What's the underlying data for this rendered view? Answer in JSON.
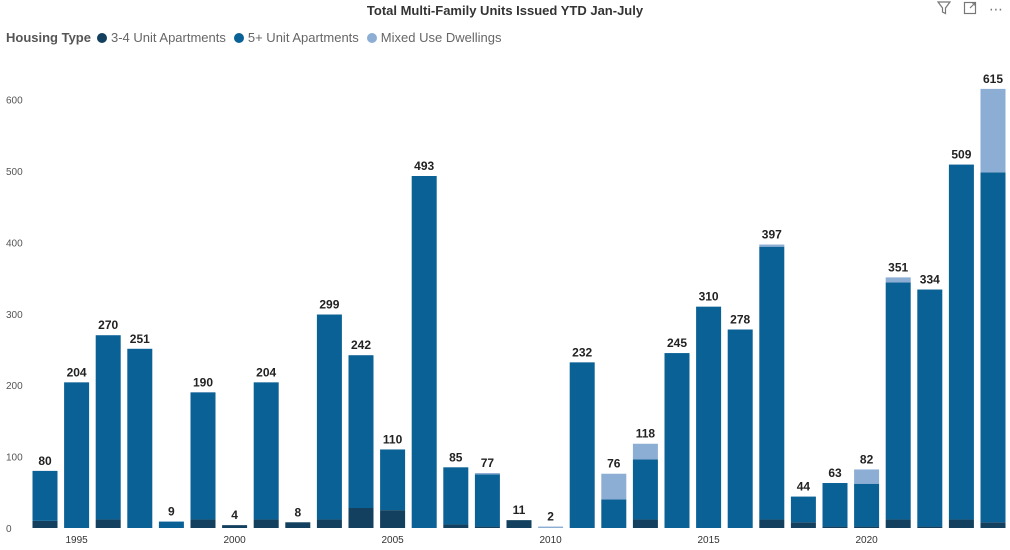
{
  "visual": {
    "title": "Total Multi-Family Units Issued YTD Jan-July",
    "toolbar": {
      "filter_icon": "filter-icon",
      "focus_icon": "focus-mode-icon",
      "more_icon": "more-options-icon"
    }
  },
  "legend": {
    "title": "Housing Type",
    "items": [
      {
        "label": "3-4 Unit Apartments",
        "color": "#12405e"
      },
      {
        "label": "5+ Unit Apartments",
        "color": "#0a6196"
      },
      {
        "label": "Mixed Use Dwellings",
        "color": "#8daed4"
      }
    ]
  },
  "chart_data": {
    "type": "bar",
    "stacked": true,
    "title": "Total Multi-Family Units Issued YTD Jan-July",
    "xlabel": "",
    "ylabel": "",
    "ylim": [
      0,
      630
    ],
    "yticks": [
      0,
      100,
      200,
      300,
      400,
      500,
      600
    ],
    "xtick_labels": [
      "1995",
      "2000",
      "2005",
      "2010",
      "2015",
      "2020"
    ],
    "categories": [
      1994,
      1995,
      1996,
      1997,
      1998,
      1999,
      2000,
      2001,
      2002,
      2003,
      2004,
      2005,
      2006,
      2007,
      2008,
      2009,
      2010,
      2011,
      2012,
      2013,
      2014,
      2015,
      2016,
      2017,
      2018,
      2019,
      2020,
      2021,
      2022,
      2023,
      2024
    ],
    "series": [
      {
        "name": "3-4 Unit Apartments",
        "color": "#12405e",
        "values": [
          10,
          0,
          12,
          0,
          0,
          12,
          4,
          12,
          8,
          12,
          28,
          25,
          0,
          5,
          2,
          11,
          0,
          0,
          0,
          12,
          0,
          0,
          0,
          12,
          8,
          2,
          2,
          12,
          2,
          12,
          8
        ]
      },
      {
        "name": "5+ Unit Apartments",
        "color": "#0a6196",
        "values": [
          70,
          204,
          258,
          251,
          9,
          178,
          0,
          192,
          0,
          287,
          214,
          85,
          493,
          80,
          73,
          0,
          0,
          232,
          40,
          84,
          245,
          310,
          278,
          382,
          36,
          61,
          60,
          332,
          332,
          497,
          490
        ]
      },
      {
        "name": "Mixed Use Dwellings",
        "color": "#8daed4",
        "values": [
          0,
          0,
          0,
          0,
          0,
          0,
          0,
          0,
          0,
          0,
          0,
          0,
          0,
          0,
          2,
          0,
          2,
          0,
          36,
          22,
          0,
          0,
          0,
          3,
          0,
          0,
          20,
          7,
          0,
          0,
          117
        ]
      }
    ],
    "totals": [
      80,
      204,
      270,
      251,
      9,
      190,
      4,
      204,
      8,
      299,
      242,
      110,
      493,
      85,
      77,
      11,
      2,
      232,
      76,
      118,
      245,
      310,
      278,
      397,
      44,
      63,
      82,
      351,
      334,
      509,
      615
    ]
  }
}
